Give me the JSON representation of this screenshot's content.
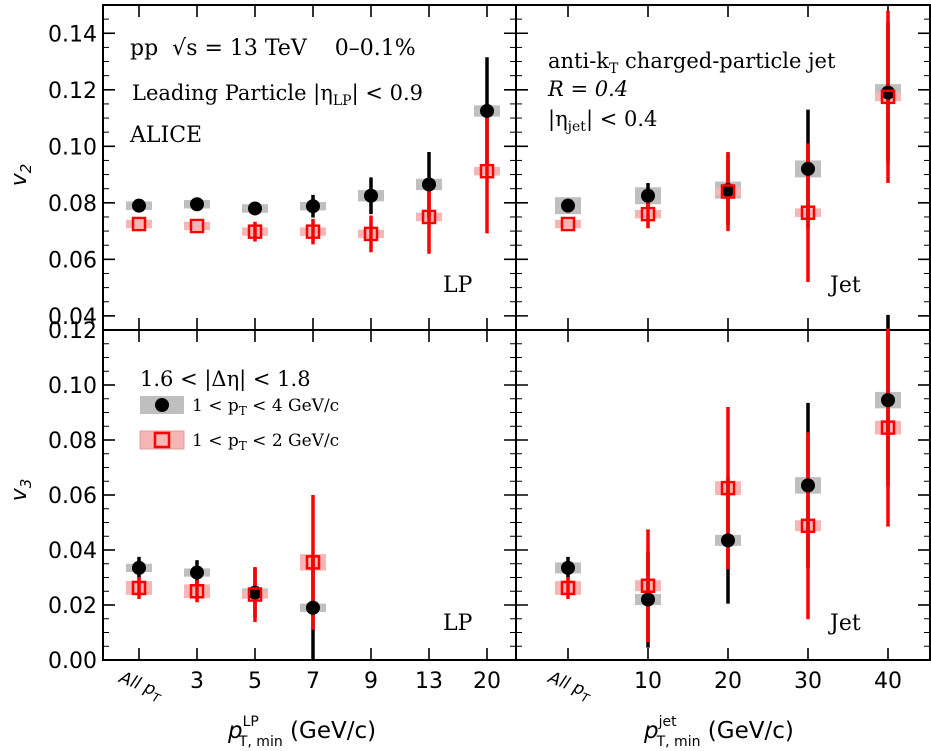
{
  "colors": {
    "series1": "#000000",
    "series2": "#ff0000",
    "sys1": "#bfbfbf",
    "sys2": "#f7b6b6"
  },
  "labels": {
    "y_v2": "v",
    "y_v2_sub": "2",
    "y_v3": "v",
    "y_v3_sub": "3",
    "x_lp_main": "p",
    "x_lp_sup": "LP",
    "x_lp_sub": "T, min",
    "x_lp_unit": " (GeV/c)",
    "x_jet_main": "p",
    "x_jet_sup": "jet",
    "x_jet_sub": "T, min",
    "x_jet_unit": " (GeV/c)"
  },
  "annotations": {
    "system": "pp",
    "sqrt_s": "√s = 13 TeV",
    "centrality": "0–0.1%",
    "lp_line1": "Leading Particle |η",
    "lp_line1_sub": "LP",
    "lp_line1_end": "| < 0.9",
    "alice": "ALICE",
    "jet_line1": "anti-k",
    "jet_line1_sub": "T",
    "jet_line1_end": " charged-particle jet",
    "jet_line2": "R = 0.4",
    "jet_line3": "|η",
    "jet_line3_sub": "jet",
    "jet_line3_end": "| < 0.4",
    "panel_lp": "LP",
    "panel_jet": "Jet",
    "deta": "1.6 < |Δη| < 1.8",
    "legend1": "1 < p",
    "legend1_sub": "T",
    "legend1_end": " < 4 GeV/c",
    "legend2": "1 < p",
    "legend2_sub": "T",
    "legend2_end": " < 2 GeV/c"
  },
  "chart_data": [
    {
      "type": "scatter",
      "panel": "v2-LP",
      "categories": [
        "All p_T",
        "3",
        "5",
        "7",
        "9",
        "13",
        "20"
      ],
      "ylim": [
        0.035,
        0.15
      ],
      "yticks": [
        0.04,
        0.06,
        0.08,
        0.1,
        0.12,
        0.14
      ],
      "series": [
        {
          "name": "1 < pT < 4 GeV/c",
          "values": [
            0.079,
            0.0795,
            0.078,
            0.0788,
            0.0825,
            0.0865,
            0.1125
          ],
          "err": [
            0.0,
            0.0,
            0.0,
            0.004,
            0.0065,
            0.0115,
            0.019
          ],
          "sys": [
            0.0015,
            0.0015,
            0.0015,
            0.0015,
            0.002,
            0.002,
            0.002
          ]
        },
        {
          "name": "1 < pT < 2 GeV/c",
          "values": [
            0.0725,
            0.0718,
            0.0698,
            0.0698,
            0.069,
            0.075,
            0.0912
          ],
          "err": [
            0.0,
            0.0,
            0.0035,
            0.0045,
            0.0065,
            0.013,
            0.022
          ],
          "sys": [
            0.0015,
            0.0015,
            0.0015,
            0.0015,
            0.0015,
            0.0015,
            0.0015
          ]
        }
      ]
    },
    {
      "type": "scatter",
      "panel": "v2-Jet",
      "categories": [
        "All p_T",
        "10",
        "20",
        "30",
        "40"
      ],
      "ylim": [
        0.035,
        0.15
      ],
      "series": [
        {
          "name": "1 < pT < 4 GeV/c",
          "values": [
            0.079,
            0.0825,
            0.0845,
            0.092,
            0.119
          ],
          "err": [
            0.0,
            0.0045,
            0.0125,
            0.021,
            0.025
          ],
          "sys": [
            0.003,
            0.003,
            0.003,
            0.003,
            0.003
          ]
        },
        {
          "name": "1 < pT < 2 GeV/c",
          "values": [
            0.0725,
            0.076,
            0.084,
            0.0765,
            0.1175
          ],
          "err": [
            0.0,
            0.005,
            0.014,
            0.0245,
            0.0305
          ],
          "sys": [
            0.0015,
            0.0015,
            0.0015,
            0.0015,
            0.0015
          ]
        }
      ]
    },
    {
      "type": "scatter",
      "panel": "v3-LP",
      "categories": [
        "All p_T",
        "3",
        "5",
        "7",
        "9",
        "13",
        "20"
      ],
      "ylim": [
        0,
        0.12
      ],
      "yticks": [
        0.0,
        0.02,
        0.04,
        0.06,
        0.08,
        0.1,
        0.12
      ],
      "series": [
        {
          "name": "1 < pT < 4 GeV/c",
          "values": [
            0.0335,
            0.0318,
            0.0245,
            0.019
          ],
          "err": [
            0.004,
            0.0045,
            0.009,
            0.019
          ],
          "sys": [
            0.0015,
            0.0015,
            0.0015,
            0.0015
          ]
        },
        {
          "name": "1 < pT < 2 GeV/c",
          "values": [
            0.0262,
            0.025,
            0.0238,
            0.0355
          ],
          "err": [
            0.004,
            0.004,
            0.01,
            0.0245
          ],
          "sys": [
            0.0025,
            0.0025,
            0.0015,
            0.003
          ]
        }
      ]
    },
    {
      "type": "scatter",
      "panel": "v3-Jet",
      "categories": [
        "All p_T",
        "10",
        "20",
        "30",
        "40"
      ],
      "ylim": [
        0,
        0.12
      ],
      "series": [
        {
          "name": "1 < pT < 4 GeV/c",
          "values": [
            0.0335,
            0.022,
            0.0435,
            0.0635,
            0.0945
          ],
          "err": [
            0.004,
            0.0175,
            0.023,
            0.03,
            0.031
          ],
          "sys": [
            0.002,
            0.002,
            0.002,
            0.003,
            0.003
          ]
        },
        {
          "name": "1 < pT < 2 GeV/c",
          "values": [
            0.0262,
            0.027,
            0.0625,
            0.0488,
            0.0845
          ],
          "err": [
            0.004,
            0.0205,
            0.0295,
            0.034,
            0.036
          ],
          "sys": [
            0.0025,
            0.002,
            0.0025,
            0.002,
            0.0025
          ]
        }
      ]
    }
  ]
}
